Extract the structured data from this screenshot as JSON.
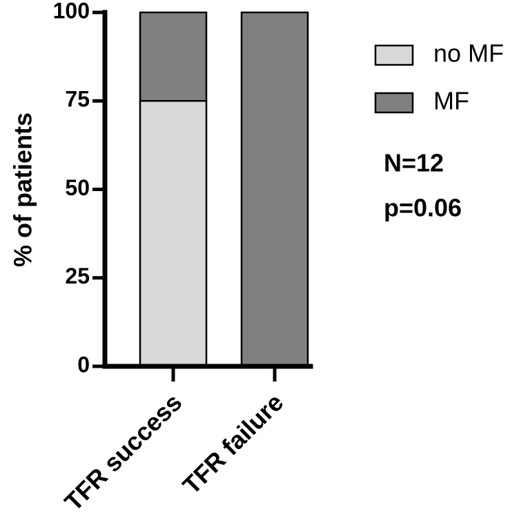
{
  "chart_data": {
    "type": "bar",
    "stacked": true,
    "categories": [
      "TFR success",
      "TFR failure"
    ],
    "series": [
      {
        "name": "no MF",
        "values": [
          75,
          0
        ],
        "color": "#d9d9d9"
      },
      {
        "name": "MF",
        "values": [
          25,
          100
        ],
        "color": "#808080"
      }
    ],
    "ylabel": "% of patients",
    "xlabel": "",
    "ylim": [
      0,
      100
    ],
    "yticks": [
      0,
      25,
      50,
      75,
      100
    ],
    "legend_position": "right",
    "annotations": [
      "N=12",
      "p=0.06"
    ],
    "grid": false
  }
}
